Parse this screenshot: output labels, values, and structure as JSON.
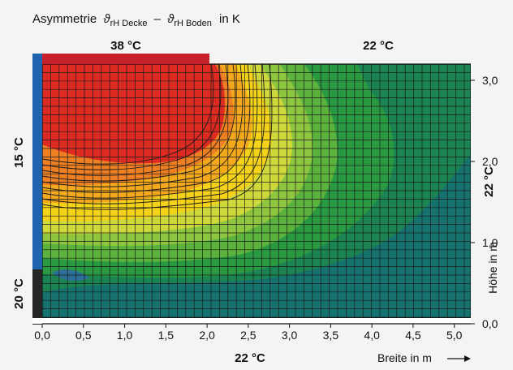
{
  "chart_data": {
    "type": "heatmap",
    "title": "Asymmetrie",
    "title_symbol": "ϑ",
    "title_sub1": "rH Decke",
    "title_dash": "–",
    "title_sub2": "rH Boden",
    "title_unit": "in K",
    "xlabel": "Breite in m",
    "ylabel": "Höhe in m",
    "xlim": [
      0,
      5.2
    ],
    "ylim": [
      0,
      3.2
    ],
    "x_ticks": [
      "0,0",
      "0,5",
      "1,0",
      "1,5",
      "2,0",
      "2,5",
      "3,0",
      "3,5",
      "4,0",
      "4,5",
      "5,0"
    ],
    "x_tick_values": [
      0,
      0.5,
      1,
      1.5,
      2,
      2.5,
      3,
      3.5,
      4,
      4.5,
      5
    ],
    "y_ticks": [
      "0,0",
      "1,0",
      "2,0",
      "3,0"
    ],
    "y_tick_values": [
      0,
      1,
      2,
      3
    ],
    "grid": true,
    "surface_temps": {
      "ceiling_hot": "38 °C",
      "ceiling_rest": "22 °C",
      "floor": "22 °C",
      "left_wall_upper": "15 °C",
      "left_wall_lower": "20 °C",
      "right_wall": "22 °C"
    },
    "hot_panel_x": [
      0,
      2.0
    ],
    "cold_window_y": [
      0.6,
      3.2
    ],
    "colors": {
      "hot_panel": "#c8202a",
      "window": "#1e63ae",
      "wall_dark": "#262626",
      "grid": "#1a1a1a",
      "background": "#f4f4f4"
    },
    "color_levels": [
      "#16726e",
      "#1c8452",
      "#2a9a42",
      "#5bb33e",
      "#8ec63f",
      "#cfd83a",
      "#f4d21a",
      "#f4a91d",
      "#ee7f22",
      "#dd2b22"
    ]
  }
}
